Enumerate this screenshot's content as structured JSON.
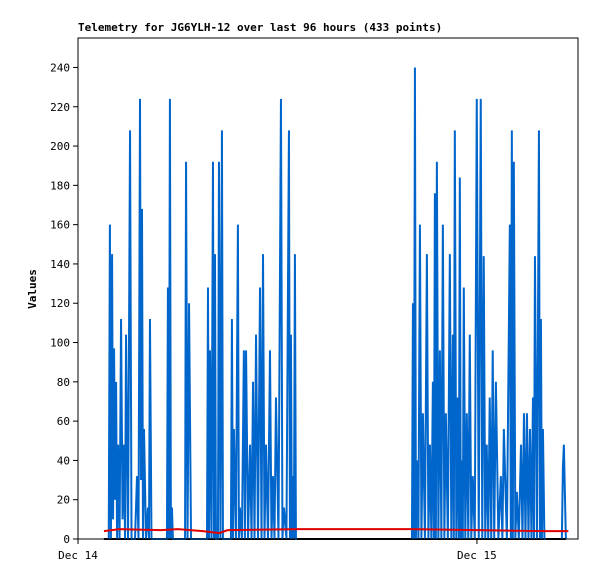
{
  "chart_data": {
    "type": "line",
    "title": "Telemetry for JG6YLH-12 over last 96 hours (433 points)",
    "y_label": "Values",
    "xlim": [
      0,
      30.08
    ],
    "xticks": [
      {
        "value": 0,
        "label": "Dec 14"
      },
      {
        "value": 24,
        "label": "Dec 15"
      }
    ],
    "ylim": [
      0,
      255
    ],
    "yticks": [
      0,
      20,
      40,
      60,
      80,
      100,
      120,
      140,
      160,
      180,
      200,
      220,
      240
    ],
    "series": [
      {
        "color": "#000000",
        "x": [
          1.56,
          29.35
        ],
        "values": [
          0,
          0
        ]
      },
      {
        "color": "#0066cc",
        "x": [
          1.85,
          1.92,
          1.98,
          2.05,
          2.11,
          2.17,
          2.23,
          2.29,
          2.35,
          2.41,
          2.5,
          2.59,
          2.68,
          2.77,
          2.83,
          2.89,
          3.01,
          3.13,
          3.22,
          3.31,
          3.43,
          3.55,
          3.64,
          3.73,
          3.79,
          3.85,
          3.91,
          3.97,
          4.09,
          4.21,
          4.27,
          4.33,
          4.42,
          4.51,
          5.35,
          5.41,
          5.47,
          5.53,
          5.59,
          5.65,
          5.71,
          6.44,
          6.5,
          6.59,
          6.68,
          6.8,
          7.1,
          7.76,
          7.82,
          7.88,
          7.94,
          8.03,
          8.12,
          8.18,
          8.24,
          8.3,
          8.36,
          8.42,
          8.48,
          8.57,
          8.66,
          8.72,
          8.78,
          9.2,
          9.26,
          9.32,
          9.38,
          9.5,
          9.62,
          9.68,
          9.74,
          9.86,
          9.98,
          10.04,
          10.11,
          10.23,
          10.35,
          10.44,
          10.53,
          10.62,
          10.71,
          10.83,
          10.95,
          11.04,
          11.13,
          11.22,
          11.31,
          11.43,
          11.55,
          11.64,
          11.73,
          11.82,
          11.91,
          12.06,
          12.21,
          12.3,
          12.39,
          12.54,
          12.69,
          12.75,
          12.81,
          12.87,
          12.93,
          12.99,
          13.05,
          13.11,
          13.17,
          16.6,
          20.09,
          20.15,
          20.21,
          20.27,
          20.33,
          20.39,
          20.48,
          20.57,
          20.66,
          20.75,
          20.87,
          20.99,
          21.08,
          21.17,
          21.26,
          21.35,
          21.41,
          21.47,
          21.53,
          21.59,
          21.68,
          21.77,
          21.86,
          21.95,
          22.04,
          22.13,
          22.25,
          22.37,
          22.46,
          22.55,
          22.61,
          22.67,
          22.76,
          22.85,
          22.91,
          22.97,
          23.03,
          23.09,
          23.15,
          23.21,
          23.3,
          23.39,
          23.48,
          23.57,
          23.66,
          23.75,
          23.87,
          23.99,
          24.11,
          24.23,
          24.32,
          24.41,
          24.5,
          24.59,
          24.68,
          24.77,
          24.86,
          24.95,
          25.04,
          25.14,
          25.29,
          25.44,
          25.53,
          25.62,
          25.8,
          25.98,
          26.04,
          26.1,
          26.16,
          26.22,
          26.31,
          26.4,
          26.52,
          26.65,
          26.74,
          26.83,
          26.92,
          27.01,
          27.1,
          27.19,
          27.28,
          27.37,
          27.43,
          27.49,
          27.61,
          27.73,
          27.79,
          27.85,
          27.91,
          27.97,
          28.06,
          28.15,
          28.6,
          29.11,
          29.17,
          29.23,
          29.29,
          29.35
        ],
        "values": [
          0,
          160,
          0,
          145,
          10,
          97,
          20,
          80,
          0,
          48,
          0,
          112,
          10,
          48,
          0,
          104,
          0,
          208,
          0,
          0,
          0,
          32,
          0,
          224,
          30,
          168,
          0,
          56,
          0,
          16,
          0,
          112,
          0,
          0,
          0,
          128,
          0,
          224,
          0,
          16,
          0,
          0,
          192,
          0,
          120,
          0,
          0,
          0,
          128,
          0,
          96,
          0,
          192,
          0,
          145,
          0,
          0,
          0,
          192,
          0,
          208,
          0,
          0,
          0,
          112,
          0,
          56,
          0,
          160,
          0,
          16,
          0,
          96,
          0,
          96,
          0,
          48,
          0,
          80,
          0,
          104,
          0,
          128,
          0,
          145,
          0,
          48,
          0,
          96,
          0,
          32,
          0,
          72,
          0,
          224,
          0,
          16,
          0,
          208,
          0,
          104,
          0,
          32,
          0,
          145,
          0,
          0,
          null,
          0,
          120,
          0,
          240,
          0,
          40,
          0,
          160,
          0,
          64,
          0,
          145,
          0,
          48,
          0,
          80,
          0,
          176,
          0,
          192,
          0,
          96,
          0,
          160,
          0,
          64,
          0,
          145,
          0,
          104,
          0,
          208,
          0,
          72,
          0,
          184,
          0,
          40,
          0,
          128,
          0,
          64,
          0,
          104,
          0,
          32,
          0,
          224,
          0,
          224,
          0,
          144,
          0,
          48,
          0,
          72,
          0,
          96,
          0,
          80,
          0,
          32,
          0,
          56,
          0,
          160,
          0,
          208,
          0,
          192,
          0,
          24,
          0,
          48,
          0,
          64,
          0,
          64,
          0,
          56,
          0,
          72,
          0,
          144,
          0,
          208,
          0,
          112,
          0,
          56,
          0,
          0,
          null,
          0,
          36,
          48,
          24,
          0
        ]
      },
      {
        "color": "#e00000",
        "x": [
          1.56,
          2.5,
          5,
          6,
          7.5,
          8.5,
          9,
          13.2,
          20,
          24,
          28,
          29.5
        ],
        "values": [
          4,
          5,
          4.5,
          5,
          4,
          3,
          4.5,
          5,
          5,
          4.5,
          4,
          4
        ]
      }
    ]
  }
}
